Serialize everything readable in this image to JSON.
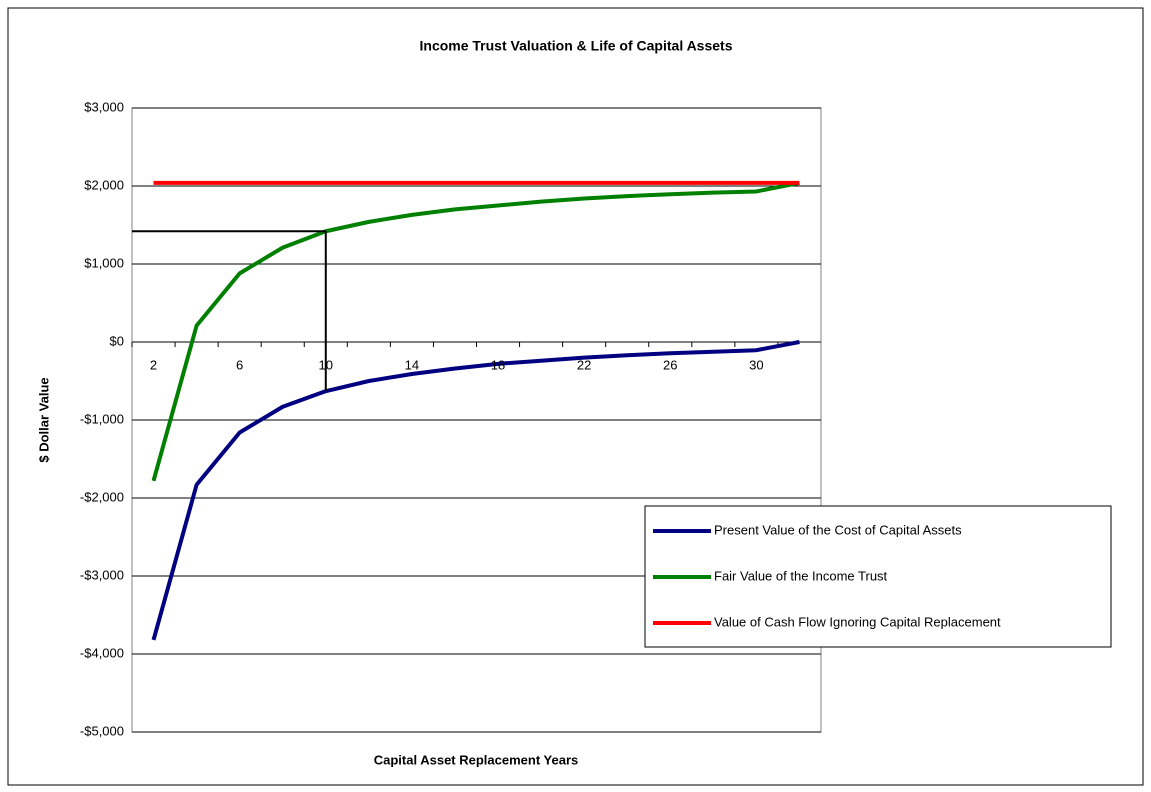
{
  "chart_data": {
    "type": "line",
    "title": "Income Trust Valuation & Life of Capital Assets",
    "xlabel": "Capital Asset Replacement Years",
    "ylabel": "$ Dollar Value",
    "categories": [
      "2",
      null,
      "6",
      null,
      "10",
      null,
      "14",
      null,
      "18",
      null,
      "22",
      null,
      "26",
      null,
      "30",
      null
    ],
    "series": [
      {
        "name": "Present Value of the Cost of Capital Assets",
        "color": "#000080",
        "values": [
          -3820,
          -1830,
          -1160,
          -830,
          -630,
          -500,
          -410,
          -340,
          -280,
          -240,
          -200,
          -170,
          -145,
          -125,
          -105,
          0
        ]
      },
      {
        "name": "Fair Value of the Income Trust",
        "color": "#008000",
        "values": [
          -1780,
          210,
          880,
          1210,
          1420,
          1540,
          1630,
          1700,
          1750,
          1800,
          1840,
          1870,
          1895,
          1915,
          1930,
          2040
        ]
      },
      {
        "name": "Value of Cash Flow Ignoring Capital Replacement",
        "color": "#ff0000",
        "values": [
          2040,
          2040,
          2040,
          2040,
          2040,
          2040,
          2040,
          2040,
          2040,
          2040,
          2040,
          2040,
          2040,
          2040,
          2040,
          2040
        ]
      }
    ],
    "ylim": [
      -5000,
      3000
    ],
    "yticks": [
      {
        "value": -5000,
        "label": "-$5,000"
      },
      {
        "value": -4000,
        "label": "-$4,000"
      },
      {
        "value": -3000,
        "label": "-$3,000"
      },
      {
        "value": -2000,
        "label": "-$2,000"
      },
      {
        "value": -1000,
        "label": "-$1,000"
      },
      {
        "value": 0,
        "label": "$0"
      },
      {
        "value": 1000,
        "label": "$1,000"
      },
      {
        "value": 2000,
        "label": "$2,000"
      },
      {
        "value": 3000,
        "label": "$3,000"
      }
    ],
    "grid": true,
    "legend": "lower right"
  }
}
